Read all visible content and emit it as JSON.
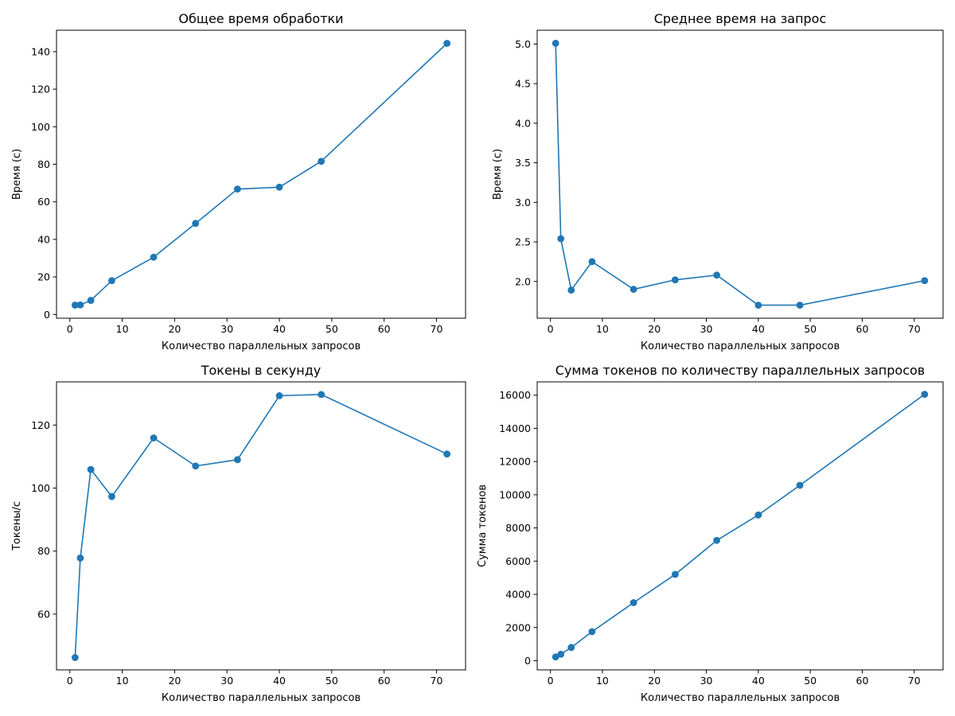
{
  "chart_data": [
    {
      "type": "line",
      "title": "Общее время обработки",
      "xlabel": "Количество параллельных запросов",
      "ylabel": "Время (с)",
      "xlim": [
        -2.55,
        75.55
      ],
      "ylim": [
        -2.0,
        151.4
      ],
      "xticks": [
        0,
        10,
        20,
        30,
        40,
        50,
        60,
        70
      ],
      "yticks": [
        0,
        20,
        40,
        60,
        80,
        100,
        120,
        140
      ],
      "color": "#1f77b4",
      "grid": false,
      "markers": true,
      "series": [
        {
          "x": [
            1,
            2,
            4,
            8,
            16,
            24,
            32,
            40,
            48,
            72
          ],
          "y": [
            5.0,
            5.1,
            7.5,
            18.0,
            30.5,
            48.5,
            66.8,
            67.8,
            81.6,
            144.4
          ]
        }
      ]
    },
    {
      "type": "line",
      "title": "Среднее время на запрос",
      "xlabel": "Количество параллельных запросов",
      "ylabel": "Время (с)",
      "xlim": [
        -2.55,
        75.55
      ],
      "ylim": [
        1.535,
        5.175
      ],
      "xticks": [
        0,
        10,
        20,
        30,
        40,
        50,
        60,
        70
      ],
      "yticks": [
        2.0,
        2.5,
        3.0,
        3.5,
        4.0,
        4.5,
        5.0
      ],
      "ytick_labels": [
        "2.0",
        "2.5",
        "3.0",
        "3.5",
        "4.0",
        "4.5",
        "5.0"
      ],
      "color": "#1f77b4",
      "grid": false,
      "markers": true,
      "series": [
        {
          "x": [
            1,
            2,
            4,
            8,
            16,
            24,
            32,
            40,
            48,
            72
          ],
          "y": [
            5.01,
            2.54,
            1.89,
            2.25,
            1.9,
            2.02,
            2.08,
            1.7,
            1.7,
            2.01
          ]
        }
      ]
    },
    {
      "type": "line",
      "title": "Токены в секунду",
      "xlabel": "Количество параллельных запросов",
      "ylabel": "Токены/с",
      "xlim": [
        -2.55,
        75.55
      ],
      "ylim": [
        42.3,
        133.7
      ],
      "xticks": [
        0,
        10,
        20,
        30,
        40,
        50,
        60,
        70
      ],
      "yticks": [
        60,
        80,
        100,
        120
      ],
      "color": "#1f77b4",
      "grid": false,
      "markers": true,
      "series": [
        {
          "x": [
            1,
            2,
            4,
            8,
            16,
            24,
            32,
            40,
            48,
            72
          ],
          "y": [
            46.2,
            77.8,
            105.9,
            97.3,
            115.9,
            107.0,
            109.0,
            129.3,
            129.7,
            110.8
          ]
        }
      ]
    },
    {
      "type": "line",
      "title": "Сумма токенов по количеству параллельных запросов",
      "xlabel": "Количество параллельных запросов",
      "ylabel": "Сумма токенов",
      "xlim": [
        -2.55,
        75.55
      ],
      "ylim": [
        -550,
        16800
      ],
      "xticks": [
        0,
        10,
        20,
        30,
        40,
        50,
        60,
        70
      ],
      "yticks": [
        0,
        2000,
        4000,
        6000,
        8000,
        10000,
        12000,
        14000,
        16000
      ],
      "color": "#1f77b4",
      "grid": false,
      "markers": true,
      "series": [
        {
          "x": [
            1,
            2,
            4,
            8,
            16,
            24,
            32,
            40,
            48,
            72
          ],
          "y": [
            230,
            390,
            800,
            1750,
            3500,
            5200,
            7250,
            8780,
            10570,
            16050
          ]
        }
      ]
    }
  ]
}
